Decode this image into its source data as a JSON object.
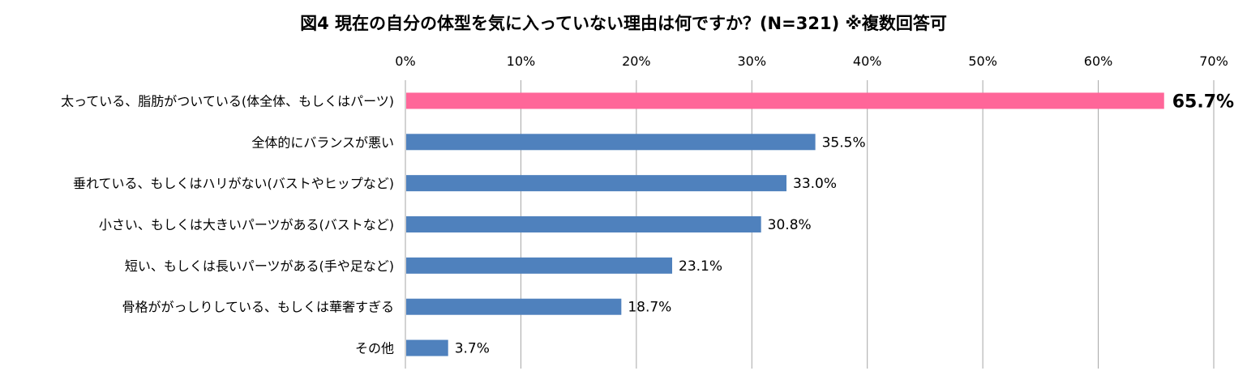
{
  "chart_data": {
    "type": "bar",
    "orientation": "horizontal",
    "title": "図4 現在の自分の体型を気に入っていない理由は何ですか？(N=321) ※複数回答可",
    "categories": [
      "太っている、脂肪がついている(体全体、もしくはパーツ)",
      "全体的にバランスが悪い",
      "垂れている、もしくはハリがない(バストやヒップなど)",
      "小さい、もしくは大きいパーツがある(バストなど)",
      "短い、もしくは長いパーツがある(手や足など)",
      "骨格ががっしりしている、もしくは華奢すぎる",
      "その他"
    ],
    "values": [
      65.7,
      35.5,
      33.0,
      30.8,
      23.1,
      18.7,
      3.7
    ],
    "value_labels": [
      "65.7%",
      "35.5%",
      "33.0%",
      "30.8%",
      "23.1%",
      "18.7%",
      "3.7%"
    ],
    "xlim": [
      0,
      70
    ],
    "x_ticks": [
      0,
      10,
      20,
      30,
      40,
      50,
      60,
      70
    ],
    "x_tick_labels": [
      "0%",
      "10%",
      "20%",
      "30%",
      "40%",
      "50%",
      "60%",
      "70%"
    ],
    "x_axis_position": "top",
    "grid": true,
    "legend": "none",
    "highlight_index": 0,
    "colors": {
      "bar": "#4f81bd",
      "highlight_bar": "#ff6699",
      "grid": "#a6a6a6",
      "axis": "#a6a6a6",
      "text": "#000000"
    }
  }
}
